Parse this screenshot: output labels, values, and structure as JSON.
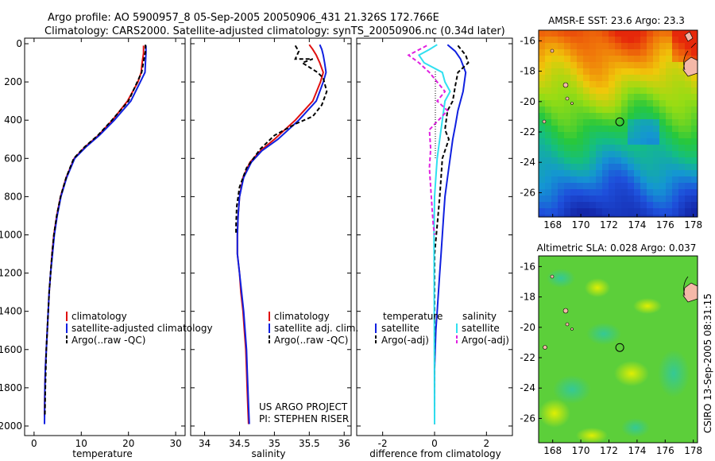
{
  "figure": {
    "title_line1": "Argo profile: AO 5900957_8 05-Sep-2005 20050906_431 21.326S 172.766E",
    "title_line2": "Climatology: CARS2000. Satellite-adjusted climatology: synTS_20050906.nc (0.34d later)",
    "watermark": "CSIRO 13-Sep-2005 08:31:15",
    "project_line1": "US ARGO PROJECT",
    "project_line2": "PI: STEPHEN RISER"
  },
  "colors": {
    "climatology": "#e01010",
    "satellite": "#1020e0",
    "argo": "#000000",
    "salinity_satellite": "#30e0f0",
    "salinity_argo": "#e020e0"
  },
  "chart_data": [
    {
      "type": "line",
      "panel": "temperature",
      "xlabel": "temperature",
      "ylabel": "",
      "xlim": [
        -2,
        32
      ],
      "ylim": [
        2050,
        0
      ],
      "xticks": [
        "0",
        "10",
        "20",
        "30"
      ],
      "yticks": [
        "0",
        "200",
        "400",
        "600",
        "800",
        "1000",
        "1200",
        "1400",
        "1600",
        "1800",
        "2000"
      ],
      "legend": [
        "climatology",
        "satellite-adjusted climatology",
        "Argo(..raw -QC)"
      ],
      "series": [
        {
          "name": "climatology",
          "x": [
            23.2,
            23.2,
            22.9,
            22.7,
            22.0,
            19.8,
            16.6,
            13.6,
            10.8,
            8.5,
            6.8,
            5.6,
            4.8,
            4.2,
            3.8,
            3.5,
            3.2,
            3.0,
            2.8,
            2.6,
            2.4,
            2.3,
            2.2
          ],
          "y": [
            10,
            50,
            100,
            150,
            200,
            300,
            400,
            480,
            540,
            600,
            700,
            800,
            900,
            1000,
            1100,
            1200,
            1300,
            1400,
            1500,
            1600,
            1700,
            1800,
            1950
          ]
        },
        {
          "name": "satellite-adjusted climatology",
          "x": [
            23.7,
            23.7,
            23.6,
            23.5,
            22.5,
            20.5,
            17.0,
            13.8,
            11.0,
            8.6,
            6.9,
            5.7,
            4.9,
            4.3,
            3.9,
            3.5,
            3.2,
            3.0,
            2.8,
            2.6,
            2.4,
            2.3,
            2.2
          ],
          "y": [
            10,
            50,
            100,
            150,
            200,
            300,
            400,
            480,
            540,
            600,
            700,
            800,
            900,
            1000,
            1100,
            1200,
            1300,
            1400,
            1500,
            1600,
            1700,
            1800,
            1990
          ]
        },
        {
          "name": "Argo(..raw -QC)",
          "x": [
            23.6,
            23.6,
            23.3,
            22.8,
            20.0,
            16.5,
            13.5,
            10.7,
            8.4,
            6.8,
            5.6,
            4.8,
            4.2,
            3.8,
            3.5,
            3.2,
            3.0,
            2.8,
            2.6,
            2.5,
            2.4,
            2.3
          ],
          "y": [
            5,
            40,
            80,
            150,
            300,
            400,
            480,
            540,
            600,
            700,
            800,
            900,
            1000,
            1100,
            1200,
            1300,
            1400,
            1500,
            1600,
            1700,
            1800,
            1950
          ]
        }
      ]
    },
    {
      "type": "line",
      "panel": "salinity",
      "xlabel": "salinity",
      "ylabel": "",
      "xlim": [
        33.8,
        36.1
      ],
      "ylim": [
        2050,
        0
      ],
      "xticks": [
        "34",
        "34.5",
        "35",
        "35.5",
        "36"
      ],
      "legend": [
        "climatology",
        "satellite adj. clim.",
        "Argo(..raw -QC)"
      ],
      "series": [
        {
          "name": "climatology",
          "x": [
            35.5,
            35.55,
            35.6,
            35.65,
            35.7,
            35.66,
            35.55,
            35.3,
            35.0,
            34.8,
            34.65,
            34.55,
            34.5,
            34.48,
            34.47,
            34.47,
            34.5,
            34.52,
            34.55,
            34.57,
            34.59,
            34.6,
            34.61,
            34.62,
            34.63
          ],
          "y": [
            5,
            30,
            60,
            100,
            150,
            200,
            300,
            400,
            500,
            560,
            620,
            700,
            800,
            900,
            1000,
            1100,
            1200,
            1300,
            1400,
            1500,
            1600,
            1700,
            1800,
            1900,
            1990
          ]
        },
        {
          "name": "satellite adj. clim.",
          "x": [
            35.65,
            35.68,
            35.7,
            35.72,
            35.74,
            35.7,
            35.6,
            35.35,
            35.05,
            34.82,
            34.67,
            34.56,
            34.5,
            34.48,
            34.47,
            34.47,
            34.5,
            34.53,
            34.56,
            34.58,
            34.6,
            34.61,
            34.62,
            34.63,
            34.64
          ],
          "y": [
            5,
            30,
            60,
            100,
            150,
            200,
            300,
            400,
            500,
            560,
            620,
            700,
            800,
            900,
            1000,
            1100,
            1200,
            1300,
            1400,
            1500,
            1600,
            1700,
            1800,
            1900,
            1990
          ]
        },
        {
          "name": "Argo(..raw -QC)",
          "x": [
            35.3,
            35.35,
            35.3,
            35.55,
            35.4,
            35.62,
            35.7,
            35.75,
            35.68,
            35.55,
            35.3,
            35.0,
            34.8,
            34.6,
            34.5,
            34.46,
            34.45,
            34.45
          ],
          "y": [
            10,
            40,
            80,
            80,
            100,
            150,
            180,
            250,
            320,
            380,
            420,
            480,
            550,
            650,
            750,
            850,
            950,
            1000
          ]
        }
      ]
    },
    {
      "type": "line",
      "panel": "difference",
      "xlabel": "difference from climatology",
      "ylabel": "",
      "xlim": [
        -3,
        3
      ],
      "ylim": [
        2050,
        0
      ],
      "xticks": [
        "-2",
        "0",
        "2"
      ],
      "legend": [
        "temperature",
        "satellite",
        "Argo(-adj)",
        "salinity",
        "satellite",
        "Argo(-adj)"
      ],
      "series": [
        {
          "name": "temperature satellite",
          "x": [
            0.5,
            0.8,
            1.0,
            1.2,
            1.1,
            0.9,
            0.8,
            0.7,
            0.6,
            0.5,
            0.45,
            0.4,
            0.35,
            0.3,
            0.25,
            0.2,
            0.15,
            0.1,
            0.05,
            0.0,
            0.0
          ],
          "y": [
            5,
            40,
            80,
            150,
            250,
            350,
            430,
            500,
            600,
            700,
            750,
            800,
            900,
            1000,
            1100,
            1200,
            1300,
            1400,
            1500,
            1700,
            1990
          ]
        },
        {
          "name": "temperature Argo(-adj)",
          "x": [
            0.9,
            1.2,
            1.3,
            0.9,
            0.8,
            0.7,
            0.5,
            0.4,
            0.55,
            0.3,
            0.25,
            0.2,
            0.1,
            0.0,
            0.0
          ],
          "y": [
            10,
            60,
            100,
            150,
            220,
            300,
            350,
            450,
            500,
            600,
            700,
            800,
            950,
            1100,
            1990
          ]
        },
        {
          "name": "salinity satellite",
          "x": [
            0.1,
            -0.2,
            -0.6,
            -0.4,
            0.3,
            0.4,
            0.6,
            0.4,
            0.3,
            0.2,
            0.1,
            0.05,
            0.0,
            -0.02,
            0.0
          ],
          "y": [
            5,
            30,
            60,
            100,
            150,
            200,
            250,
            300,
            400,
            500,
            600,
            700,
            800,
            1000,
            1990
          ]
        },
        {
          "name": "salinity Argo(-adj)",
          "x": [
            -0.3,
            -1.0,
            -0.6,
            -0.2,
            0.4,
            0.1,
            0.5,
            -0.2,
            -0.15,
            -0.2,
            -0.15,
            -0.1,
            -0.05,
            0.0
          ],
          "y": [
            10,
            60,
            100,
            150,
            250,
            300,
            350,
            450,
            550,
            650,
            750,
            850,
            950,
            1000
          ]
        }
      ]
    }
  ],
  "maps": [
    {
      "title": "AMSR-E SST: 23.6  Argo: 23.3",
      "xticks": [
        "168",
        "170",
        "172",
        "174",
        "176",
        "178"
      ],
      "yticks": [
        "-16",
        "-18",
        "-20",
        "-22",
        "-24",
        "-26"
      ],
      "float_lon": 172.77,
      "float_lat": -21.33
    },
    {
      "title": "Altimetric SLA: 0.028  Argo: 0.037",
      "xticks": [
        "168",
        "170",
        "172",
        "174",
        "176",
        "178"
      ],
      "yticks": [
        "-16",
        "-18",
        "-20",
        "-22",
        "-24",
        "-26"
      ],
      "float_lon": 172.77,
      "float_lat": -21.33
    }
  ]
}
